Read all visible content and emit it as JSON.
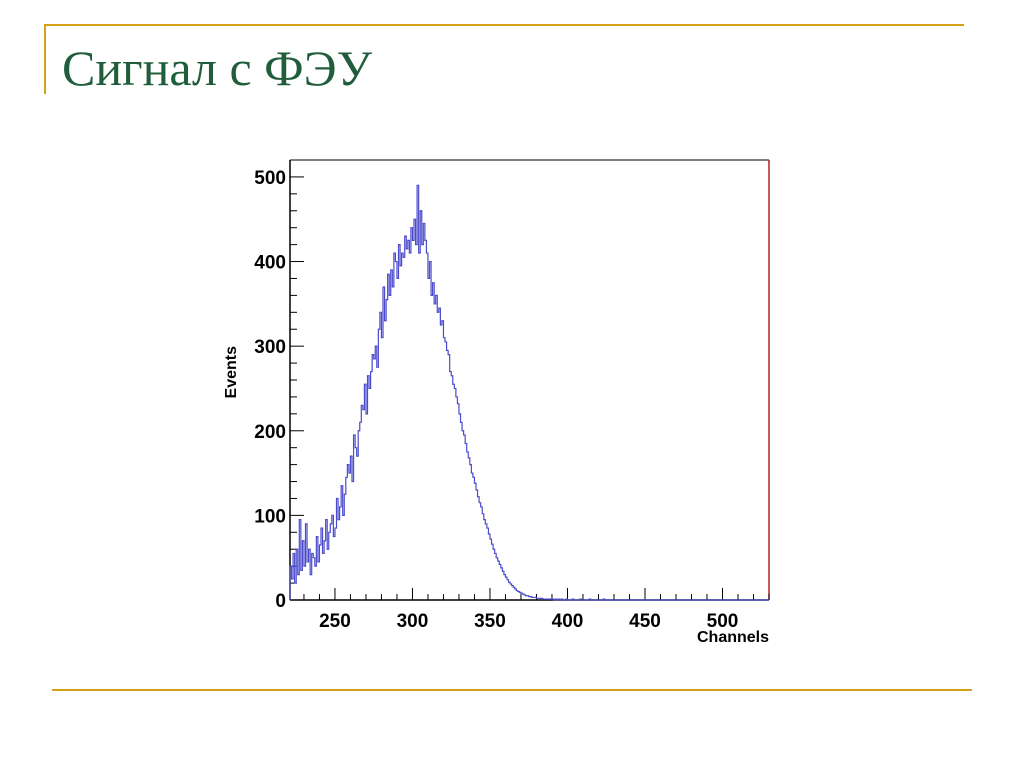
{
  "slide": {
    "title": "Сигнал с ФЭУ"
  },
  "colors": {
    "accent_rule": "#d4a017",
    "title": "#1f5d3b",
    "histogram": "#4b4bcc",
    "frame_right": "#b22222"
  },
  "chart_data": {
    "type": "histogram",
    "title": "",
    "xlabel": "Channels",
    "ylabel": "Events",
    "xlim": [
      221,
      530
    ],
    "ylim": [
      0,
      520
    ],
    "x_ticks": [
      250,
      300,
      350,
      400,
      450,
      500
    ],
    "y_ticks": [
      0,
      100,
      200,
      300,
      400,
      500
    ],
    "bin_start": 221,
    "bin_width": 1,
    "values": [
      40,
      25,
      55,
      20,
      60,
      30,
      95,
      35,
      70,
      40,
      90,
      45,
      60,
      30,
      55,
      50,
      40,
      75,
      45,
      65,
      85,
      55,
      70,
      95,
      60,
      80,
      90,
      100,
      75,
      85,
      120,
      95,
      110,
      135,
      100,
      125,
      145,
      160,
      150,
      170,
      140,
      195,
      180,
      170,
      200,
      210,
      230,
      225,
      255,
      220,
      265,
      250,
      270,
      290,
      285,
      300,
      275,
      320,
      340,
      310,
      370,
      330,
      355,
      385,
      360,
      390,
      370,
      410,
      400,
      380,
      420,
      395,
      410,
      405,
      430,
      415,
      425,
      410,
      440,
      425,
      450,
      420,
      490,
      410,
      460,
      420,
      445,
      425,
      410,
      380,
      400,
      360,
      375,
      350,
      360,
      340,
      345,
      325,
      330,
      310,
      305,
      295,
      290,
      270,
      265,
      255,
      250,
      240,
      232,
      220,
      210,
      200,
      195,
      185,
      175,
      168,
      160,
      150,
      145,
      138,
      130,
      122,
      115,
      110,
      102,
      95,
      90,
      85,
      78,
      72,
      66,
      60,
      55,
      50,
      46,
      42,
      38,
      34,
      30,
      27,
      24,
      21,
      19,
      17,
      15,
      13,
      11,
      10,
      9,
      8,
      7,
      6,
      5,
      5,
      4,
      4,
      3,
      3,
      3,
      2,
      2,
      2,
      2,
      1,
      1,
      1,
      1,
      1,
      1,
      1,
      0,
      1,
      0,
      1,
      0,
      1,
      0,
      0,
      1,
      0,
      0,
      0,
      1,
      0,
      0,
      0,
      0,
      1,
      0,
      0,
      0,
      0,
      0,
      1,
      0,
      0,
      0,
      0,
      0,
      0,
      0,
      0,
      1,
      0,
      0,
      0,
      0,
      0,
      0,
      0,
      0,
      0,
      0,
      0,
      0,
      0,
      0,
      0,
      0,
      0,
      0,
      0,
      0,
      0,
      0,
      0,
      0,
      0,
      0,
      0,
      0,
      0,
      0,
      0,
      0,
      0,
      0,
      0,
      0,
      0,
      0,
      0,
      0,
      0,
      0,
      0,
      0,
      0,
      0,
      0,
      0,
      0,
      0,
      0,
      0,
      0,
      0,
      0,
      0,
      0,
      0,
      0,
      0,
      0,
      0,
      0,
      0,
      0,
      0,
      0,
      0,
      0,
      0,
      0,
      0,
      0,
      0,
      0,
      0,
      0,
      0,
      0,
      0,
      0,
      0,
      0,
      0,
      0,
      0,
      0,
      0,
      0,
      0,
      0,
      0,
      0,
      0,
      0,
      0,
      0,
      0,
      0,
      0,
      0,
      0,
      0,
      0,
      0,
      0,
      0,
      0,
      0,
      0
    ]
  }
}
